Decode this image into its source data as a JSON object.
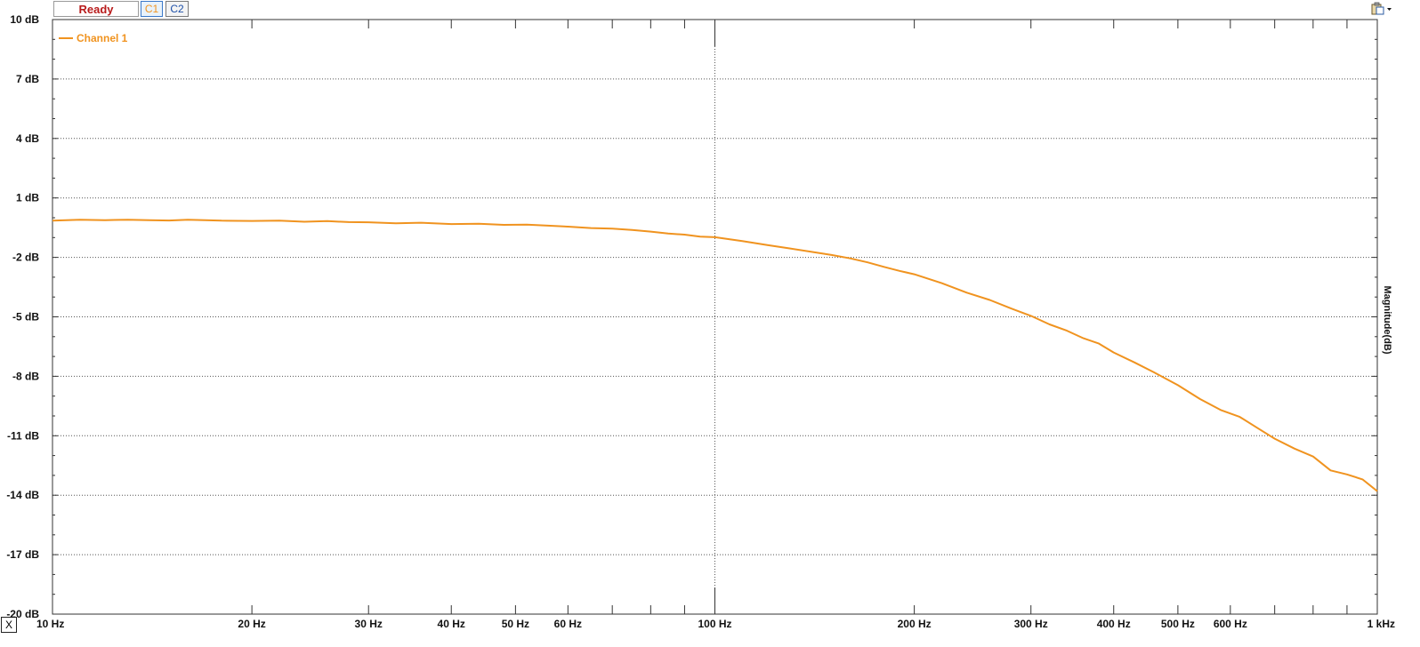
{
  "toolbar": {
    "status_label": "Ready",
    "channel1_label": "C1",
    "channel2_label": "C2",
    "close_label": "X"
  },
  "colors": {
    "series": "#f0931f",
    "status": "#b81b1b",
    "channel2": "#1d4fa8",
    "grid": "#555555"
  },
  "chart_data": {
    "type": "line",
    "title": "",
    "xlabel": "",
    "ylabel": "Magnitude(dB)",
    "x_scale": "log",
    "xlim": [
      10,
      1000
    ],
    "ylim": [
      -20,
      10
    ],
    "x_ticks": [
      {
        "value": 10,
        "label": "10 Hz"
      },
      {
        "value": 20,
        "label": "20 Hz"
      },
      {
        "value": 30,
        "label": "30 Hz"
      },
      {
        "value": 40,
        "label": "40 Hz"
      },
      {
        "value": 50,
        "label": "50 Hz"
      },
      {
        "value": 60,
        "label": "60 Hz"
      },
      {
        "value": 100,
        "label": "100 Hz"
      },
      {
        "value": 200,
        "label": "200 Hz"
      },
      {
        "value": 300,
        "label": "300 Hz"
      },
      {
        "value": 400,
        "label": "400 Hz"
      },
      {
        "value": 500,
        "label": "500 Hz"
      },
      {
        "value": 600,
        "label": "600 Hz"
      },
      {
        "value": 1000,
        "label": "1 kHz"
      }
    ],
    "y_ticks": [
      {
        "value": 10,
        "label": "10 dB"
      },
      {
        "value": 7,
        "label": "7 dB"
      },
      {
        "value": 4,
        "label": "4 dB"
      },
      {
        "value": 1,
        "label": "1 dB"
      },
      {
        "value": -2,
        "label": "-2 dB"
      },
      {
        "value": -5,
        "label": "-5 dB"
      },
      {
        "value": -8,
        "label": "-8 dB"
      },
      {
        "value": -11,
        "label": "-11 dB"
      },
      {
        "value": -14,
        "label": "-14 dB"
      },
      {
        "value": -17,
        "label": "-17 dB"
      },
      {
        "value": -20,
        "label": "-20 dB"
      }
    ],
    "grid": true,
    "legend_position": "top-left",
    "series": [
      {
        "name": "Channel 1",
        "color": "#f0931f",
        "x": [
          10,
          11,
          12,
          13,
          14,
          15,
          16,
          17,
          18,
          20,
          22,
          24,
          26,
          28,
          30,
          33,
          36,
          40,
          44,
          48,
          52,
          56,
          60,
          65,
          70,
          75,
          80,
          85,
          90,
          95,
          100,
          110,
          120,
          130,
          140,
          150,
          160,
          170,
          180,
          190,
          200,
          220,
          240,
          260,
          280,
          300,
          320,
          340,
          360,
          380,
          400,
          430,
          460,
          500,
          540,
          580,
          620,
          660,
          700,
          750,
          800,
          850,
          900,
          950,
          1000
        ],
        "y": [
          -0.15,
          -0.1,
          -0.12,
          -0.1,
          -0.12,
          -0.14,
          -0.1,
          -0.12,
          -0.15,
          -0.16,
          -0.15,
          -0.2,
          -0.17,
          -0.22,
          -0.23,
          -0.28,
          -0.25,
          -0.32,
          -0.3,
          -0.36,
          -0.35,
          -0.4,
          -0.45,
          -0.52,
          -0.55,
          -0.62,
          -0.7,
          -0.8,
          -0.85,
          -0.95,
          -0.98,
          -1.18,
          -1.38,
          -1.55,
          -1.72,
          -1.88,
          -2.05,
          -2.25,
          -2.48,
          -2.68,
          -2.85,
          -3.3,
          -3.78,
          -4.15,
          -4.58,
          -4.95,
          -5.38,
          -5.7,
          -6.08,
          -6.35,
          -6.8,
          -7.3,
          -7.8,
          -8.45,
          -9.15,
          -9.7,
          -10.05,
          -10.62,
          -11.15,
          -11.65,
          -12.05,
          -12.75,
          -12.95,
          -13.2,
          -13.8
        ]
      }
    ]
  }
}
